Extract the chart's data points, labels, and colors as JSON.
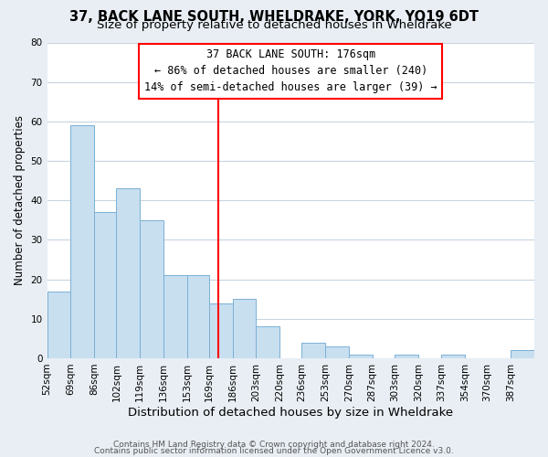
{
  "title": "37, BACK LANE SOUTH, WHELDRAKE, YORK, YO19 6DT",
  "subtitle": "Size of property relative to detached houses in Wheldrake",
  "xlabel": "Distribution of detached houses by size in Wheldrake",
  "ylabel": "Number of detached properties",
  "bar_color": "#c8dff0",
  "bar_edge_color": "#7ab0d4",
  "bin_labels": [
    "52sqm",
    "69sqm",
    "86sqm",
    "102sqm",
    "119sqm",
    "136sqm",
    "153sqm",
    "169sqm",
    "186sqm",
    "203sqm",
    "220sqm",
    "236sqm",
    "253sqm",
    "270sqm",
    "287sqm",
    "303sqm",
    "320sqm",
    "337sqm",
    "354sqm",
    "370sqm",
    "387sqm"
  ],
  "bin_edges": [
    52,
    69,
    86,
    102,
    119,
    136,
    153,
    169,
    186,
    203,
    220,
    236,
    253,
    270,
    287,
    303,
    320,
    337,
    354,
    370,
    387
  ],
  "bar_heights": [
    17,
    59,
    37,
    43,
    35,
    21,
    21,
    14,
    15,
    8,
    0,
    4,
    3,
    1,
    0,
    1,
    0,
    1,
    0,
    0,
    2
  ],
  "ylim": [
    0,
    80
  ],
  "yticks": [
    0,
    10,
    20,
    30,
    40,
    50,
    60,
    70,
    80
  ],
  "property_line_x": 176,
  "annotation_title": "37 BACK LANE SOUTH: 176sqm",
  "annotation_line1": "← 86% of detached houses are smaller (240)",
  "annotation_line2": "14% of semi-detached houses are larger (39) →",
  "footer_line1": "Contains HM Land Registry data © Crown copyright and database right 2024.",
  "footer_line2": "Contains public sector information licensed under the Open Government Licence v3.0.",
  "fig_background_color": "#e8eef4",
  "plot_background_color": "#ffffff",
  "grid_color": "#c8d4e0",
  "title_fontsize": 10.5,
  "subtitle_fontsize": 9.5,
  "ylabel_fontsize": 8.5,
  "xlabel_fontsize": 9.5,
  "tick_fontsize": 7.5,
  "annotation_fontsize": 8.5,
  "footer_fontsize": 6.5
}
